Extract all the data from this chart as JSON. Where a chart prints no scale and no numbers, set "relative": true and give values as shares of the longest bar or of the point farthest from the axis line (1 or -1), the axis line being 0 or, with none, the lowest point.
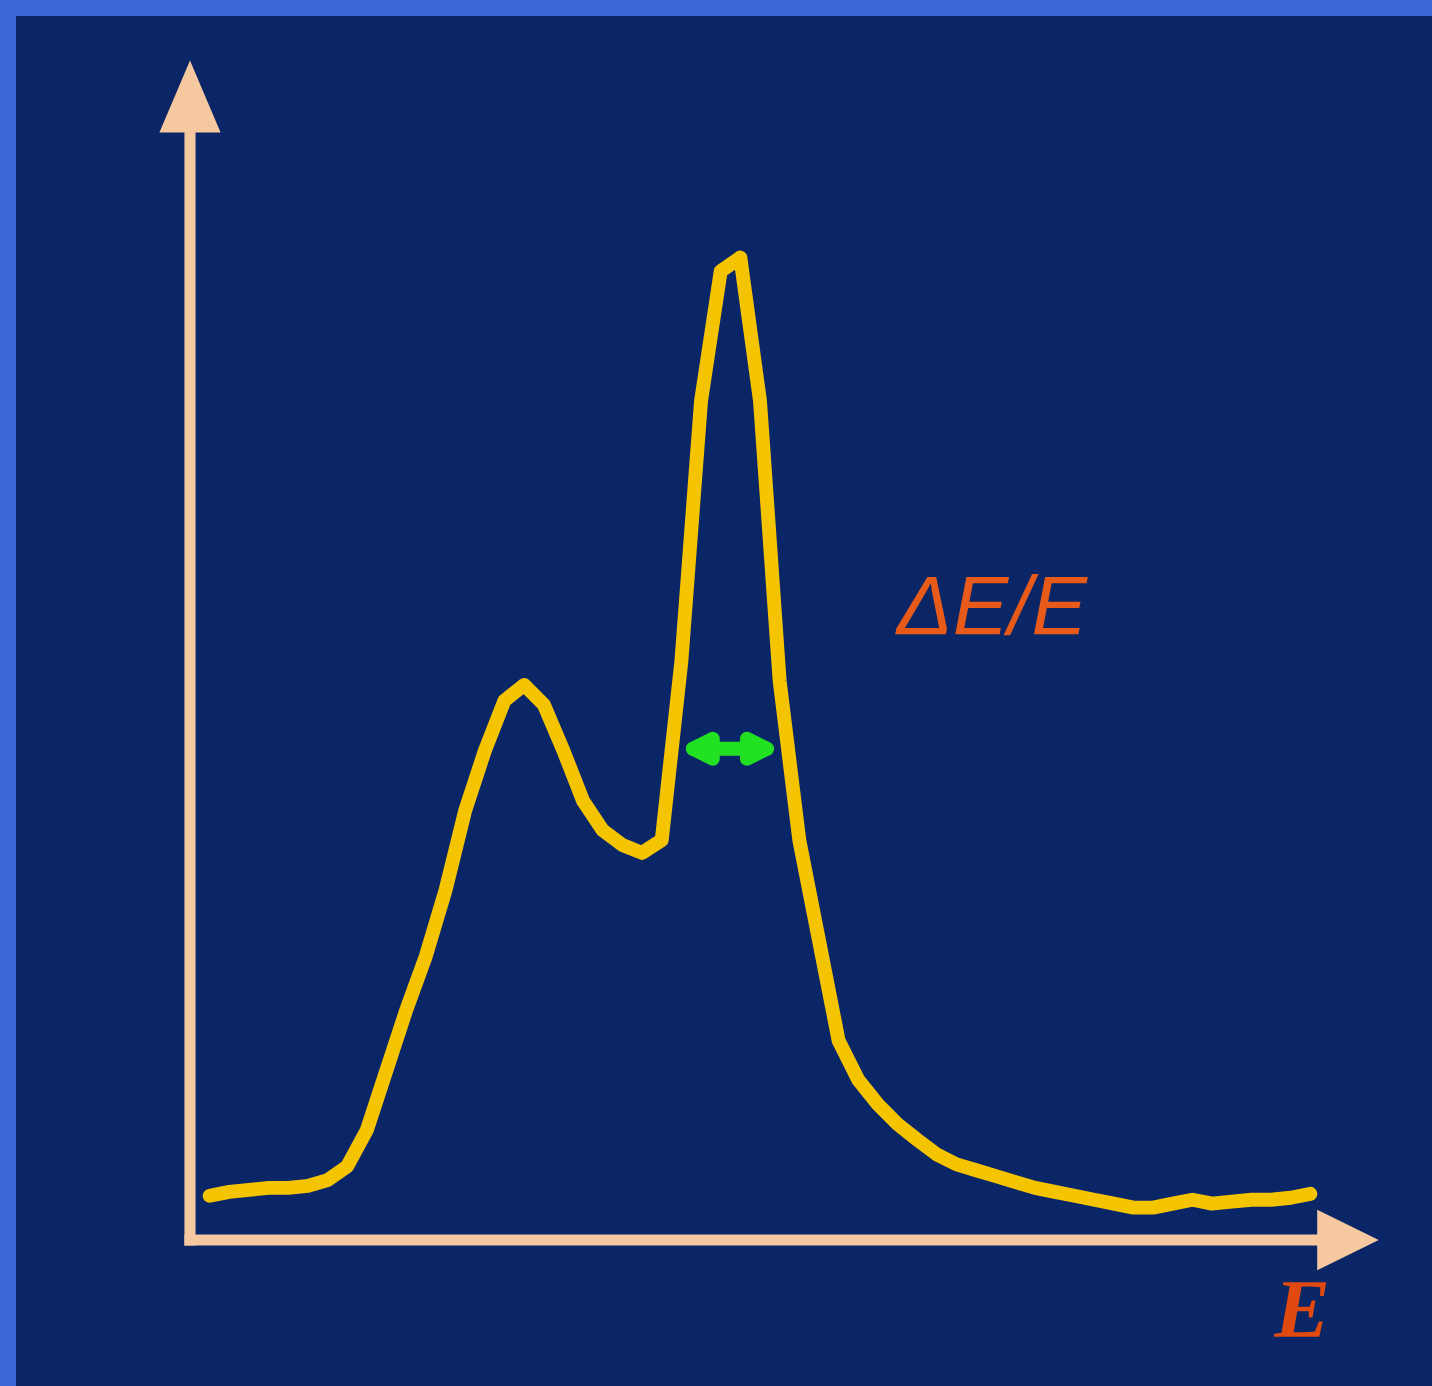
{
  "chart_data": {
    "type": "line",
    "relative": true,
    "color": "#f5c400",
    "xlabel": "E",
    "annotations": [
      "ΔE/E"
    ],
    "categories": [
      null,
      null,
      null,
      null,
      null,
      null,
      null,
      null,
      null,
      null,
      null,
      null,
      null,
      null,
      null,
      null,
      null,
      null,
      null,
      null,
      null,
      null,
      null,
      null,
      null,
      null,
      null,
      null,
      null,
      null,
      null,
      null,
      null,
      null,
      null,
      null,
      null,
      null,
      null,
      null,
      null,
      null,
      null,
      null,
      null,
      null,
      null,
      null,
      null,
      null,
      null,
      null,
      null,
      null,
      null,
      null,
      null
    ],
    "values": [
      0.045,
      0.049,
      0.051,
      0.053,
      0.053,
      0.055,
      0.061,
      0.075,
      0.112,
      0.173,
      0.234,
      0.289,
      0.356,
      0.437,
      0.498,
      0.549,
      0.565,
      0.545,
      0.498,
      0.447,
      0.417,
      0.402,
      0.394,
      0.407,
      0.589,
      0.854,
      0.986,
      1.0,
      0.854,
      0.569,
      0.407,
      0.305,
      0.203,
      0.163,
      0.138,
      0.118,
      0.102,
      0.087,
      0.077,
      0.071,
      0.065,
      0.059,
      0.053,
      0.049,
      0.045,
      0.041,
      0.037,
      0.033,
      0.033,
      0.037,
      0.041,
      0.037,
      0.039,
      0.041,
      0.041,
      0.043,
      0.047
    ]
  }
}
